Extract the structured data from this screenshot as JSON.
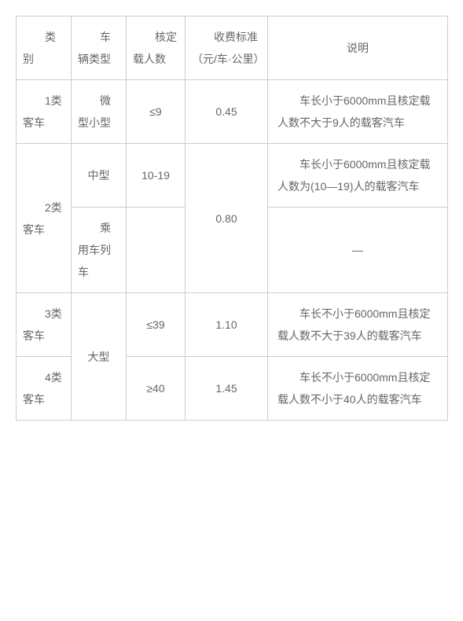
{
  "header": {
    "category": "类别",
    "vehicle_type": "车辆类型",
    "capacity": "核定载人数",
    "fee_standard": "收费标准（元/车·公里）",
    "description": "说明"
  },
  "rows": [
    {
      "category": "1类客车",
      "vehicle_type": "微型小型",
      "capacity": "≤9",
      "fee": "0.45",
      "description": "车长小于6000mm且核定载人数不大于9人的载客汽车"
    },
    {
      "category": "2类客车",
      "vehicle_type_a": "中型",
      "capacity_a": "10-19",
      "fee": "0.80",
      "description_a": "车长小于6000mm且核定载人数为(10—19)人的载客汽车",
      "vehicle_type_b": "乘用车列车",
      "description_b": "—"
    },
    {
      "category": "3类客车",
      "vehicle_type": "大型",
      "capacity": "≤39",
      "fee": "1.10",
      "description": "车长不小于6000mm且核定载人数不大于39人的载客汽车"
    },
    {
      "category": "4类客车",
      "capacity": "≥40",
      "fee": "1.45",
      "description": "车长不小于6000mm且核定载人数不小于40人的载客汽车"
    }
  ]
}
